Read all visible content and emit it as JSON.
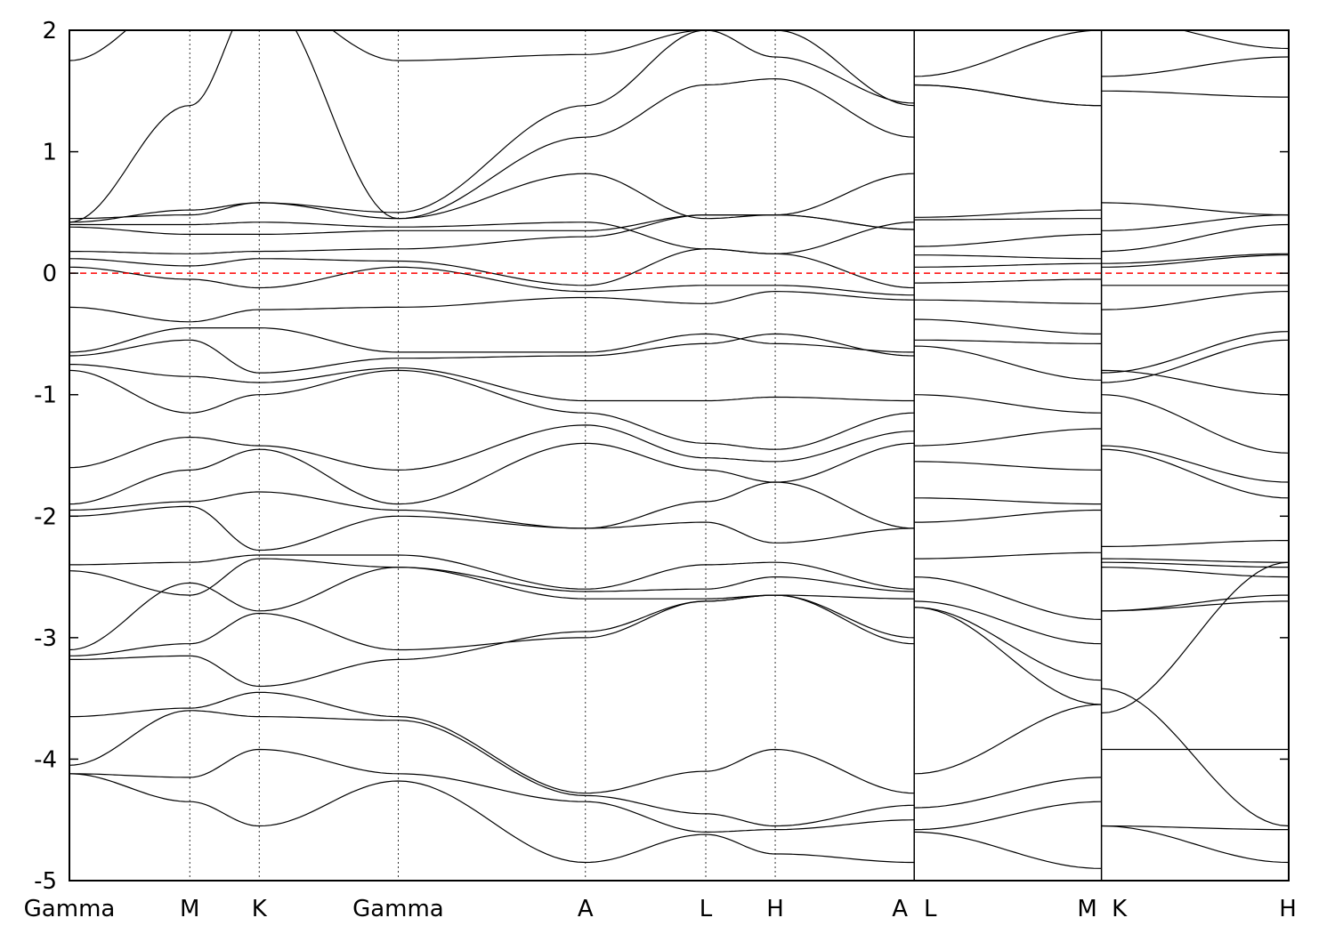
{
  "chart_data": {
    "type": "line",
    "title": "",
    "xlabel": "",
    "ylabel": "",
    "ylim": [
      -5,
      2
    ],
    "y_ticks": [
      "2",
      "1",
      "0",
      "-1",
      "-2",
      "-3",
      "-4",
      "-5"
    ],
    "y_tick_values": [
      2,
      1,
      0,
      -1,
      -2,
      -3,
      -4,
      -5
    ],
    "kpath_labels": [
      "Gamma",
      "M",
      "K",
      "Gamma",
      "A",
      "L",
      "H",
      "A",
      "L",
      "M",
      "K",
      "H"
    ],
    "kpath_positions": [
      0,
      1,
      1.577,
      2.732,
      4.288,
      5.288,
      5.865,
      7.02,
      7.02,
      8.576,
      8.576,
      10.132
    ],
    "path_breaks": [
      7.02,
      8.576
    ],
    "fermi_level": 0,
    "fermi_color": "#ff0000",
    "line_color": "#000000",
    "grid": "vertical dotted lines at high-symmetry points",
    "series_note": "dense band structure; selected bands sampled at high-symmetry points",
    "bands": [
      [
        1.75,
        2.3,
        2.3,
        1.75,
        1.8,
        2.0,
        1.78,
        1.4,
        1.55,
        1.38,
        1.5,
        1.45
      ],
      [
        0.42,
        1.38,
        2.3,
        0.45,
        1.12,
        1.55,
        1.6,
        1.12,
        1.55,
        1.38,
        1.62,
        1.78
      ],
      [
        0.45,
        0.48,
        0.58,
        0.5,
        1.38,
        2.0,
        2.0,
        1.38,
        1.62,
        2.0,
        2.1,
        1.85
      ],
      [
        0.42,
        0.52,
        0.58,
        0.45,
        0.82,
        0.45,
        0.48,
        0.82,
        0.46,
        0.52,
        0.58,
        0.48
      ],
      [
        0.4,
        0.4,
        0.42,
        0.38,
        0.42,
        0.2,
        0.16,
        0.42,
        0.44,
        0.45,
        0.35,
        0.48
      ],
      [
        0.38,
        0.32,
        0.32,
        0.35,
        0.35,
        0.48,
        0.48,
        0.36,
        0.22,
        0.32,
        0.18,
        0.4
      ],
      [
        0.18,
        0.16,
        0.18,
        0.2,
        0.3,
        0.48,
        0.48,
        0.36,
        0.15,
        0.12,
        0.08,
        0.16
      ],
      [
        0.12,
        0.06,
        0.12,
        0.1,
        -0.1,
        0.2,
        0.16,
        -0.12,
        0.05,
        0.08,
        0.05,
        0.15
      ],
      [
        0.05,
        -0.05,
        -0.12,
        0.05,
        -0.15,
        -0.1,
        -0.1,
        -0.18,
        -0.08,
        -0.05,
        -0.1,
        -0.1
      ],
      [
        -0.28,
        -0.4,
        -0.3,
        -0.28,
        -0.2,
        -0.25,
        -0.15,
        -0.22,
        -0.22,
        -0.25,
        -0.3,
        -0.15
      ],
      [
        -0.65,
        -0.45,
        -0.45,
        -0.65,
        -0.65,
        -0.5,
        -0.58,
        -0.65,
        -0.38,
        -0.5,
        -0.82,
        -0.48
      ],
      [
        -0.68,
        -0.55,
        -0.82,
        -0.7,
        -0.68,
        -0.58,
        -0.5,
        -0.68,
        -0.55,
        -0.58,
        -0.9,
        -0.55
      ],
      [
        -0.75,
        -0.85,
        -0.9,
        -0.78,
        -1.05,
        -1.05,
        -1.02,
        -1.05,
        -0.6,
        -0.88,
        -0.8,
        -1.0
      ],
      [
        -0.8,
        -1.15,
        -1.0,
        -0.8,
        -1.15,
        -1.4,
        -1.45,
        -1.15,
        -1.0,
        -1.15,
        -1.0,
        -1.48
      ],
      [
        -1.6,
        -1.35,
        -1.42,
        -1.62,
        -1.25,
        -1.52,
        -1.55,
        -1.3,
        -1.42,
        -1.28,
        -1.42,
        -1.72
      ],
      [
        -1.9,
        -1.62,
        -1.45,
        -1.9,
        -1.4,
        -1.62,
        -1.72,
        -1.4,
        -1.55,
        -1.62,
        -1.45,
        -1.85
      ],
      [
        -1.95,
        -1.88,
        -1.8,
        -1.95,
        -2.1,
        -1.88,
        -1.72,
        -2.1,
        -1.85,
        -1.9,
        -2.25,
        -2.2
      ],
      [
        -2.0,
        -1.92,
        -2.28,
        -2.0,
        -2.1,
        -2.05,
        -2.22,
        -2.1,
        -2.05,
        -1.95,
        -2.35,
        -2.38
      ],
      [
        -2.4,
        -2.38,
        -2.32,
        -2.32,
        -2.6,
        -2.4,
        -2.38,
        -2.6,
        -2.35,
        -2.3,
        -2.38,
        -2.42
      ],
      [
        -2.45,
        -2.65,
        -2.35,
        -2.42,
        -2.62,
        -2.6,
        -2.5,
        -2.62,
        -2.5,
        -2.85,
        -2.42,
        -2.5
      ],
      [
        -3.1,
        -2.55,
        -2.78,
        -2.42,
        -2.68,
        -2.68,
        -2.65,
        -2.68,
        -2.7,
        -3.05,
        -2.78,
        -2.65
      ],
      [
        -3.15,
        -3.05,
        -2.8,
        -3.1,
        -3.0,
        -2.7,
        -2.65,
        -3.0,
        -2.75,
        -3.35,
        -2.78,
        -2.7
      ],
      [
        -3.18,
        -3.15,
        -3.4,
        -3.18,
        -2.95,
        -2.7,
        -2.65,
        -3.05,
        -2.75,
        -3.55,
        -3.62,
        -2.38
      ],
      [
        -3.65,
        -3.58,
        -3.45,
        -3.65,
        -4.28,
        -4.1,
        -3.92,
        -4.28,
        -4.12,
        -3.55,
        -3.42,
        -4.55
      ],
      [
        -4.05,
        -3.6,
        -3.65,
        -3.68,
        -4.3,
        -4.45,
        -4.55,
        -4.38,
        -4.4,
        -4.15,
        -3.92,
        -3.92
      ],
      [
        -4.12,
        -4.15,
        -3.92,
        -4.12,
        -4.35,
        -4.6,
        -4.58,
        -4.5,
        -4.58,
        -4.35,
        -4.55,
        -4.58
      ],
      [
        -4.12,
        -4.35,
        -4.55,
        -4.18,
        -4.85,
        -4.62,
        -4.78,
        -4.85,
        -4.6,
        -4.9,
        -4.55,
        -4.85
      ]
    ]
  }
}
